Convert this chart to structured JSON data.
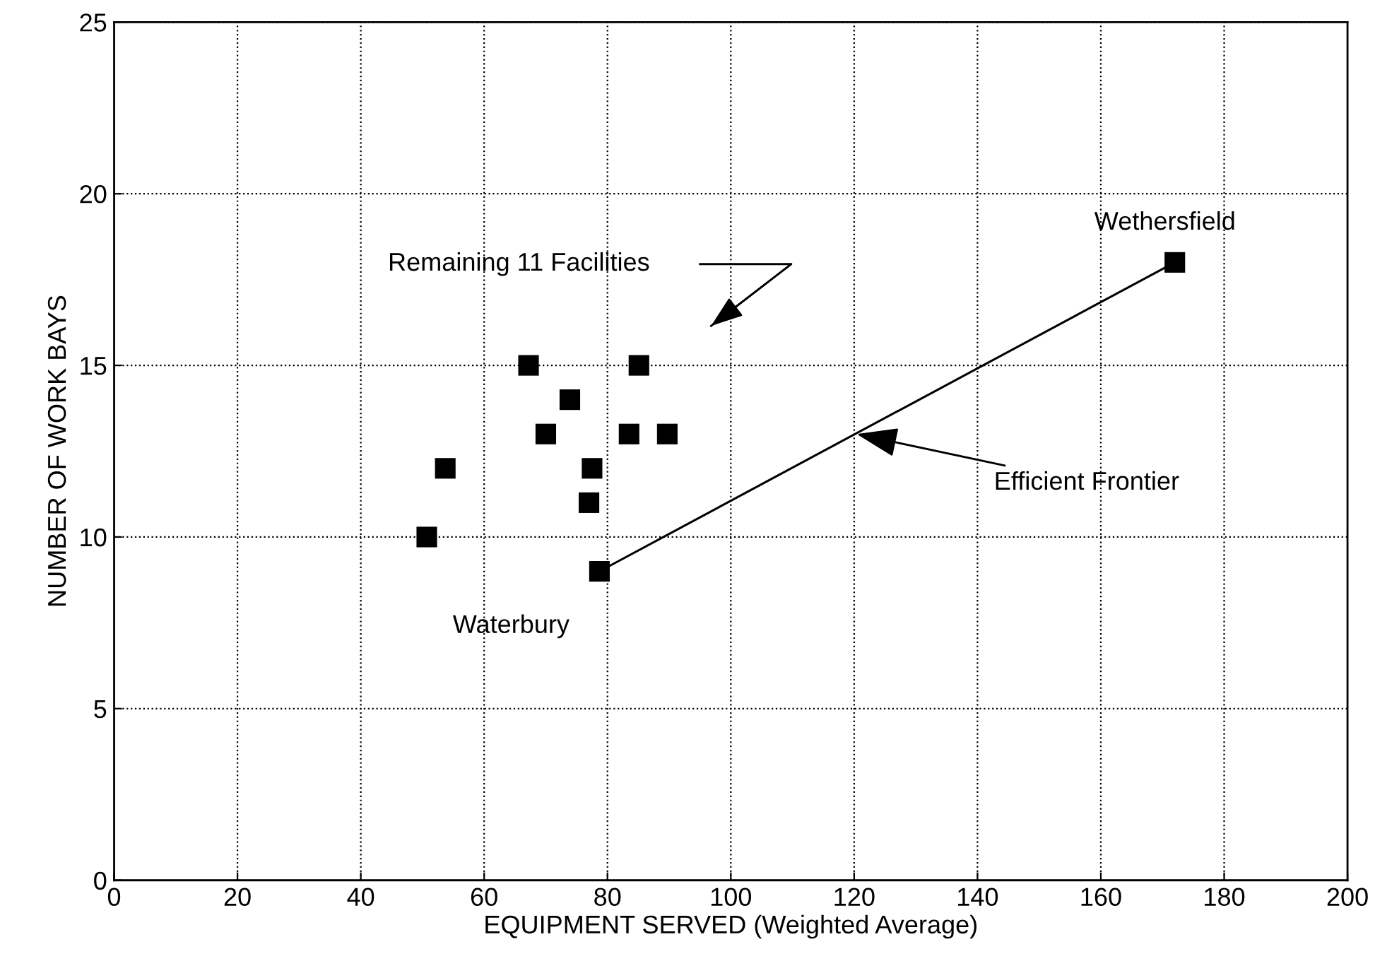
{
  "chart_data": {
    "type": "scatter",
    "xlabel": "EQUIPMENT SERVED (Weighted Average)",
    "ylabel": "NUMBER OF WORK BAYS",
    "series": [
      {
        "color": "#000000",
        "marker": "square",
        "x": [
          50.7,
          53.7,
          67.2,
          70,
          73.9,
          77.5,
          77,
          78.7,
          83.5,
          85.1,
          89.7,
          172
        ],
        "values": [
          10,
          12,
          15,
          13,
          14,
          12,
          11,
          9,
          13,
          15,
          13,
          18
        ]
      },
      {
        "type": "line",
        "color": "#000000",
        "marker": "none",
        "line_style": "solid",
        "x": [
          78.7,
          172
        ],
        "values": [
          9,
          18
        ]
      }
    ],
    "xlim": [
      0,
      200
    ],
    "xticks": [
      0,
      20,
      40,
      60,
      80,
      100,
      120,
      140,
      160,
      180,
      200
    ],
    "ylim": [
      0,
      25
    ],
    "yticks": [
      0,
      5,
      10,
      15,
      20,
      25
    ],
    "grid": true,
    "annotations": [
      "Remaining 11 Facilities",
      {
        "text": "Efficient Frontier",
        "x": 120.4,
        "y": 13.0
      },
      {
        "text": "Waterbury",
        "x": 78.7,
        "y": 9
      },
      {
        "text": "Wethersfield",
        "x": 172,
        "y": 18
      }
    ]
  }
}
